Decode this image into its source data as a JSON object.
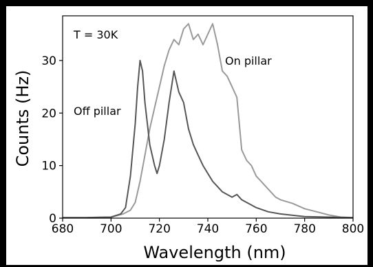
{
  "chart_data": {
    "type": "line",
    "title": "",
    "xlabel": "Wavelength (nm)",
    "ylabel": "Counts (Hz)",
    "xlim": [
      680,
      800
    ],
    "ylim": [
      0,
      38.5
    ],
    "xticks": [
      680,
      700,
      720,
      740,
      760,
      780,
      800
    ],
    "yticks": [
      0,
      10,
      20,
      30
    ],
    "grid": false,
    "legend": "none",
    "annotations": [
      {
        "id": "temperature",
        "text": "T = 30K"
      },
      {
        "id": "on-pillar",
        "text": "On pillar"
      },
      {
        "id": "off-pillar",
        "text": "Off pillar"
      }
    ],
    "series": [
      {
        "label_ref": "on-pillar",
        "color": "#999999",
        "points": [
          [
            680,
            0.1
          ],
          [
            690,
            0.1
          ],
          [
            700,
            0.2
          ],
          [
            705,
            0.8
          ],
          [
            708,
            1.5
          ],
          [
            710,
            3
          ],
          [
            712,
            7
          ],
          [
            714,
            12
          ],
          [
            716,
            17
          ],
          [
            718,
            21
          ],
          [
            720,
            25
          ],
          [
            722,
            29
          ],
          [
            724,
            32
          ],
          [
            726,
            34
          ],
          [
            728,
            33
          ],
          [
            730,
            36
          ],
          [
            732,
            37
          ],
          [
            734,
            34
          ],
          [
            736,
            35
          ],
          [
            738,
            33
          ],
          [
            740,
            35
          ],
          [
            742,
            37
          ],
          [
            744,
            33
          ],
          [
            746,
            28
          ],
          [
            748,
            27
          ],
          [
            750,
            25
          ],
          [
            752,
            23
          ],
          [
            754,
            13
          ],
          [
            756,
            11
          ],
          [
            758,
            10
          ],
          [
            760,
            8
          ],
          [
            762,
            7
          ],
          [
            764,
            6
          ],
          [
            766,
            5
          ],
          [
            768,
            4
          ],
          [
            770,
            3.5
          ],
          [
            775,
            2.8
          ],
          [
            780,
            1.8
          ],
          [
            785,
            1.2
          ],
          [
            790,
            0.6
          ],
          [
            795,
            0.2
          ],
          [
            800,
            0.1
          ]
        ]
      },
      {
        "label_ref": "off-pillar",
        "color": "#555555",
        "points": [
          [
            680,
            0.1
          ],
          [
            690,
            0.1
          ],
          [
            700,
            0.2
          ],
          [
            704,
            0.8
          ],
          [
            706,
            2
          ],
          [
            708,
            8
          ],
          [
            710,
            18
          ],
          [
            711,
            25
          ],
          [
            712,
            30
          ],
          [
            713,
            28
          ],
          [
            714,
            22
          ],
          [
            716,
            14
          ],
          [
            718,
            10
          ],
          [
            719,
            8.5
          ],
          [
            720,
            10
          ],
          [
            722,
            15
          ],
          [
            724,
            22
          ],
          [
            726,
            28
          ],
          [
            728,
            24
          ],
          [
            730,
            22
          ],
          [
            732,
            17
          ],
          [
            734,
            14
          ],
          [
            736,
            12
          ],
          [
            738,
            10
          ],
          [
            740,
            8.5
          ],
          [
            742,
            7
          ],
          [
            744,
            6
          ],
          [
            746,
            5
          ],
          [
            748,
            4.5
          ],
          [
            750,
            4
          ],
          [
            752,
            4.5
          ],
          [
            754,
            3.5
          ],
          [
            756,
            3
          ],
          [
            758,
            2.5
          ],
          [
            760,
            2
          ],
          [
            765,
            1.2
          ],
          [
            770,
            0.8
          ],
          [
            780,
            0.3
          ],
          [
            790,
            0.2
          ],
          [
            800,
            0.1
          ]
        ]
      }
    ]
  }
}
